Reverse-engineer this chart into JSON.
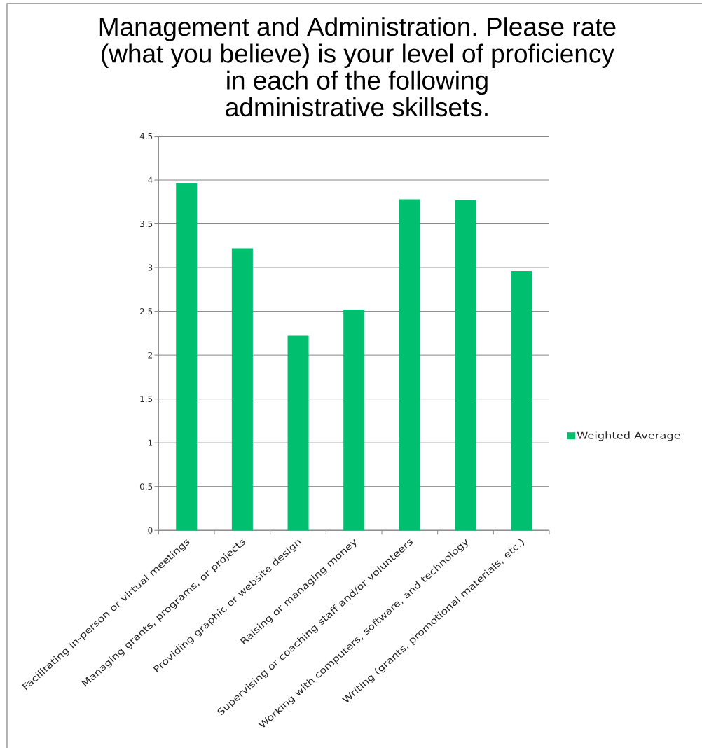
{
  "chart_data": {
    "type": "bar",
    "title": "Management and Administration. Please rate (what you believe) is your level of proficiency in each of the following administrative skillsets.",
    "categories": [
      "Facilitating in-person or virtual meetings",
      "Managing grants, programs, or projects",
      "Providing graphic or website design",
      "Raising or managing money",
      "Supervising or coaching staff and/or volunteers",
      "Working with computers, software, and technology",
      "Writing (grants, promotional materials, etc.)"
    ],
    "series": [
      {
        "name": "Weighted Average",
        "color": "#00bf6f",
        "values": [
          3.96,
          3.22,
          2.22,
          2.52,
          3.78,
          3.77,
          2.96
        ]
      }
    ],
    "ylim": [
      0,
      4.5
    ],
    "yticks": [
      0,
      0.5,
      1,
      1.5,
      2,
      2.5,
      3,
      3.5,
      4,
      4.5
    ],
    "grid": "y",
    "legend": "right"
  }
}
